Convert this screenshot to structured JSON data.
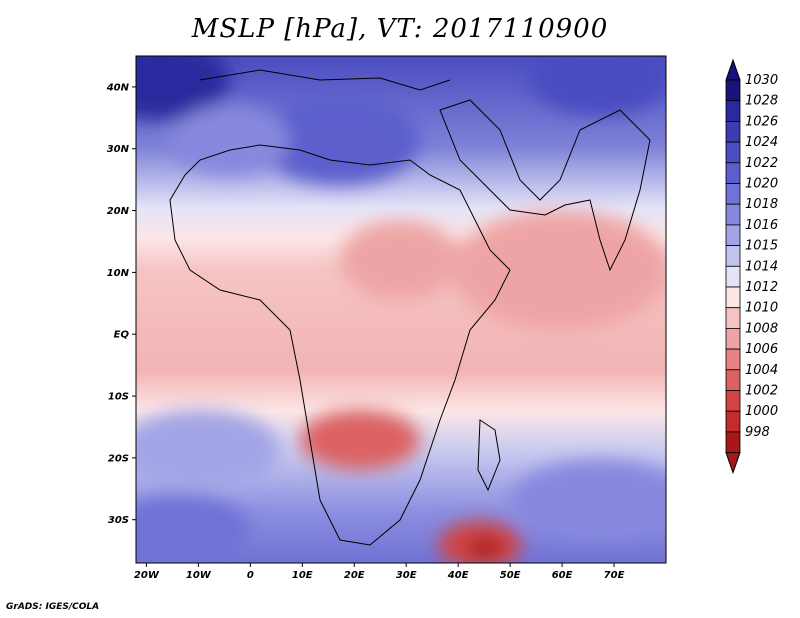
{
  "title": "MSLP [hPa], VT: 2017110900",
  "credit": "GrADS: IGES/COLA",
  "map": {
    "lon_range": [
      -22,
      80
    ],
    "lat_range": [
      -37,
      45
    ],
    "lat_ticks": [
      {
        "lat": 40,
        "label": "40N"
      },
      {
        "lat": 30,
        "label": "30N"
      },
      {
        "lat": 20,
        "label": "20N"
      },
      {
        "lat": 10,
        "label": "10N"
      },
      {
        "lat": 0,
        "label": "EQ"
      },
      {
        "lat": -10,
        "label": "10S"
      },
      {
        "lat": -20,
        "label": "20S"
      },
      {
        "lat": -30,
        "label": "30S"
      }
    ],
    "lon_ticks": [
      {
        "lon": -20,
        "label": "20W"
      },
      {
        "lon": -10,
        "label": "10W"
      },
      {
        "lon": 0,
        "label": "0"
      },
      {
        "lon": 10,
        "label": "10E"
      },
      {
        "lon": 20,
        "label": "20E"
      },
      {
        "lon": 30,
        "label": "30E"
      },
      {
        "lon": 40,
        "label": "40E"
      },
      {
        "lon": 50,
        "label": "50E"
      },
      {
        "lon": 60,
        "label": "60E"
      },
      {
        "lon": 70,
        "label": "70E"
      }
    ]
  },
  "colorbar": {
    "labels": [
      "1030",
      "1028",
      "1026",
      "1024",
      "1022",
      "1020",
      "1018",
      "1016",
      "1015",
      "1014",
      "1012",
      "1010",
      "1008",
      "1006",
      "1004",
      "1002",
      "1000",
      "998"
    ],
    "colors": [
      "#1a127a",
      "#2a2a9e",
      "#3a3cb0",
      "#4a4cc0",
      "#5b5ecc",
      "#6f72d6",
      "#8788de",
      "#a2a4e6",
      "#c2c4ee",
      "#e4e4f8",
      "#fce6e6",
      "#f6c4c4",
      "#eea4a4",
      "#e68282",
      "#dc6262",
      "#d24444",
      "#c22c2c",
      "#a81818"
    ]
  }
}
